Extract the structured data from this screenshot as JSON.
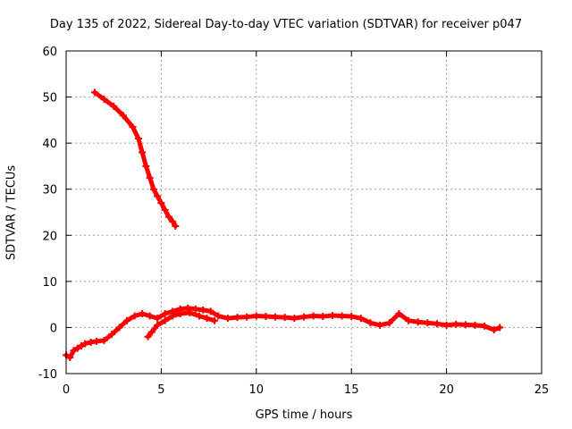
{
  "chart_data": {
    "type": "scatter",
    "title": "Day 135 of 2022, Sidereal Day-to-day VTEC variation (SDTVAR) for receiver p047",
    "xlabel": "GPS time / hours",
    "ylabel": "SDTVAR / TECUs",
    "xlim": [
      0,
      25
    ],
    "ylim": [
      -10,
      60
    ],
    "xticks": [
      "0",
      "5",
      "10",
      "15",
      "20",
      "25"
    ],
    "yticks": [
      "-10",
      "0",
      "10",
      "20",
      "30",
      "40",
      "50",
      "60"
    ],
    "grid": true,
    "marker_color": "#ff0000",
    "series": [
      {
        "name": "track-high",
        "x": [
          1.5,
          2.0,
          2.5,
          3.0,
          3.5,
          3.8,
          4.0,
          4.2,
          4.4,
          4.6,
          4.8,
          5.0,
          5.2,
          5.4,
          5.6,
          5.75
        ],
        "y": [
          51.0,
          49.5,
          48.0,
          46.0,
          43.5,
          41.0,
          38.0,
          35.0,
          32.5,
          30.0,
          28.5,
          27.0,
          25.5,
          24.0,
          23.0,
          22.0
        ]
      },
      {
        "name": "track-low",
        "x": [
          0.0,
          0.2,
          0.4,
          0.6,
          0.8,
          1.0,
          1.3,
          1.6,
          2.0,
          2.4,
          2.8,
          3.2,
          3.6,
          4.0,
          4.4,
          4.8,
          5.2,
          5.6,
          6.0,
          6.4,
          6.8,
          7.2,
          7.6,
          8.0,
          8.5,
          9.0,
          9.5,
          10.0,
          10.5,
          11.0,
          11.5,
          12.0,
          12.5,
          13.0,
          13.5,
          14.0,
          14.5,
          15.0,
          15.5,
          16.0,
          16.5,
          17.0,
          17.5,
          18.0,
          18.5,
          19.0,
          19.5,
          20.0,
          20.5,
          21.0,
          21.5,
          22.0,
          22.5,
          22.8
        ],
        "y": [
          -6.0,
          -6.5,
          -5.0,
          -4.5,
          -4.0,
          -3.5,
          -3.2,
          -3.0,
          -2.8,
          -1.5,
          0.0,
          1.5,
          2.5,
          3.0,
          2.5,
          2.0,
          3.0,
          3.5,
          4.0,
          4.2,
          4.0,
          3.8,
          3.5,
          2.5,
          2.0,
          2.2,
          2.3,
          2.5,
          2.4,
          2.3,
          2.2,
          2.0,
          2.3,
          2.5,
          2.4,
          2.6,
          2.5,
          2.4,
          2.0,
          1.0,
          0.5,
          1.0,
          3.0,
          1.5,
          1.2,
          1.0,
          0.8,
          0.5,
          0.7,
          0.6,
          0.5,
          0.3,
          -0.5,
          0.0
        ]
      },
      {
        "name": "track-low-2",
        "x": [
          4.3,
          4.5,
          4.8,
          5.2,
          5.6,
          6.0,
          6.5,
          7.0,
          7.4,
          7.8
        ],
        "y": [
          -2.0,
          -1.0,
          0.5,
          1.5,
          2.5,
          3.0,
          3.2,
          2.5,
          2.0,
          1.5
        ]
      }
    ]
  }
}
